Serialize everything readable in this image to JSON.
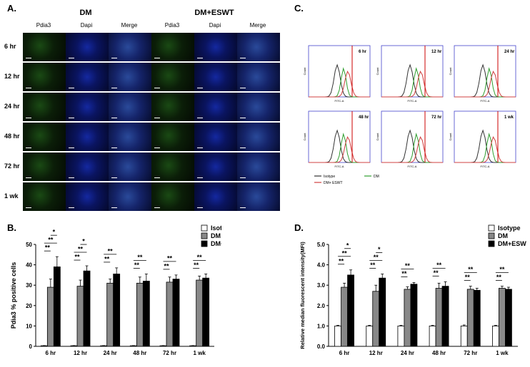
{
  "figure": {
    "panel_a": {
      "letter": "A.",
      "groups": [
        "DM",
        "DM+ESWT"
      ],
      "columns": [
        "Pdia3",
        "Dapi",
        "Merge"
      ],
      "rows": [
        "6 hr",
        "12 hr",
        "24 hr",
        "48 hr",
        "72 hr",
        "1 wk"
      ]
    },
    "panel_c": {
      "letter": "C.",
      "timepoints": [
        "6 hr",
        "12 hr",
        "24 hr",
        "48 hr",
        "72 hr",
        "1 wk"
      ],
      "ylabel": "Count",
      "xlabel": "FITC-A",
      "legend": [
        "Isotype",
        "DM",
        "DM+ ESWT"
      ],
      "colors": {
        "isotype": "#333333",
        "dm": "#2e9e2e",
        "eswt": "#d04040",
        "axis": "#4444cc",
        "gate": "#cc0000"
      }
    },
    "panel_b": {
      "letter": "B."
    },
    "panel_d": {
      "letter": "D."
    }
  },
  "chart_data": [
    {
      "type": "bar",
      "categories": [
        "6 hr",
        "12 hr",
        "24 hr",
        "48 hr",
        "72 hr",
        "1 wk"
      ],
      "ylabel": "Pdia3 % positive cells",
      "ylim": [
        0,
        50
      ],
      "yticks": [
        "0",
        "10",
        "20",
        "30",
        "40",
        "50"
      ],
      "legend": [
        "Isotype",
        "DM",
        "DM+ ESWT"
      ],
      "series": [
        {
          "name": "Isotype",
          "color": "#ffffff",
          "values": [
            0.3,
            0.3,
            0.3,
            0.3,
            0.3,
            0.3
          ],
          "errors": [
            0.1,
            0.1,
            0.1,
            0.1,
            0.1,
            0.1
          ]
        },
        {
          "name": "DM",
          "color": "#888888",
          "values": [
            29,
            29.5,
            31,
            31,
            31.5,
            32.5
          ],
          "errors": [
            4,
            3,
            2,
            3,
            2.5,
            2
          ]
        },
        {
          "name": "DM+ ESWT",
          "color": "#000000",
          "values": [
            39,
            37,
            35.5,
            32,
            33,
            33.5
          ],
          "errors": [
            5,
            2.5,
            3,
            3.5,
            2,
            2
          ]
        }
      ],
      "sig": [
        [
          {
            "pair": [
              0,
              1
            ],
            "label": "**"
          },
          {
            "pair": [
              0,
              2
            ],
            "label": "**"
          },
          {
            "pair": [
              1,
              2
            ],
            "label": "*"
          }
        ],
        [
          {
            "pair": [
              0,
              1
            ],
            "label": "**"
          },
          {
            "pair": [
              0,
              2
            ],
            "label": "**"
          },
          {
            "pair": [
              1,
              2
            ],
            "label": "*"
          }
        ],
        [
          {
            "pair": [
              0,
              1
            ],
            "label": "**"
          },
          {
            "pair": [
              0,
              2
            ],
            "label": "**"
          }
        ],
        [
          {
            "pair": [
              0,
              1
            ],
            "label": "**"
          },
          {
            "pair": [
              0,
              2
            ],
            "label": "**"
          }
        ],
        [
          {
            "pair": [
              0,
              1
            ],
            "label": "**"
          },
          {
            "pair": [
              0,
              2
            ],
            "label": "**"
          }
        ],
        [
          {
            "pair": [
              0,
              1
            ],
            "label": "**"
          },
          {
            "pair": [
              0,
              2
            ],
            "label": "**"
          }
        ]
      ]
    },
    {
      "type": "bar",
      "categories": [
        "6 hr",
        "12 hr",
        "24 hr",
        "48 hr",
        "72 hr",
        "1 wk"
      ],
      "ylabel": "Relative median fluorescent intensity(MFI)",
      "ylim": [
        0,
        5
      ],
      "yticks": [
        "0.0",
        "1.0",
        "2.0",
        "3.0",
        "4.0",
        "5.0"
      ],
      "legend": [
        "Isotype",
        "DM",
        "DM+ESWT"
      ],
      "series": [
        {
          "name": "Isotype",
          "color": "#ffffff",
          "values": [
            1.0,
            1.0,
            1.0,
            1.0,
            1.0,
            1.0
          ],
          "errors": [
            0.03,
            0.03,
            0.03,
            0.03,
            0.05,
            0.03
          ]
        },
        {
          "name": "DM",
          "color": "#888888",
          "values": [
            2.9,
            2.7,
            2.8,
            2.85,
            2.8,
            2.85
          ],
          "errors": [
            0.2,
            0.3,
            0.12,
            0.25,
            0.15,
            0.1
          ]
        },
        {
          "name": "DM+ESWT",
          "color": "#000000",
          "values": [
            3.5,
            3.35,
            3.05,
            2.95,
            2.75,
            2.8
          ],
          "errors": [
            0.25,
            0.2,
            0.08,
            0.22,
            0.1,
            0.1
          ]
        }
      ],
      "sig": [
        [
          {
            "pair": [
              0,
              1
            ],
            "label": "**"
          },
          {
            "pair": [
              0,
              2
            ],
            "label": "**"
          },
          {
            "pair": [
              1,
              2
            ],
            "label": "*"
          }
        ],
        [
          {
            "pair": [
              0,
              1
            ],
            "label": "**"
          },
          {
            "pair": [
              0,
              2
            ],
            "label": "**"
          },
          {
            "pair": [
              1,
              2
            ],
            "label": "*"
          }
        ],
        [
          {
            "pair": [
              0,
              1
            ],
            "label": "**"
          },
          {
            "pair": [
              0,
              2
            ],
            "label": "**"
          }
        ],
        [
          {
            "pair": [
              0,
              1
            ],
            "label": "**"
          },
          {
            "pair": [
              0,
              2
            ],
            "label": "**"
          }
        ],
        [
          {
            "pair": [
              0,
              1
            ],
            "label": "**"
          },
          {
            "pair": [
              0,
              2
            ],
            "label": "**"
          }
        ],
        [
          {
            "pair": [
              0,
              1
            ],
            "label": "**"
          },
          {
            "pair": [
              0,
              2
            ],
            "label": "**"
          }
        ]
      ]
    }
  ]
}
